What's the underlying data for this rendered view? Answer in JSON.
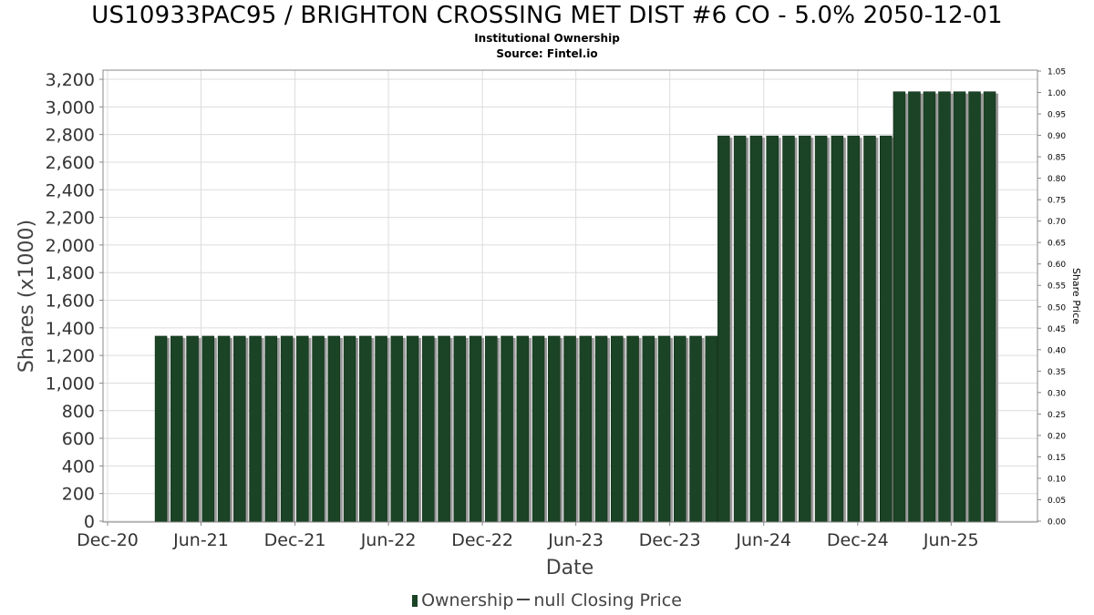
{
  "chart_data": {
    "type": "bar",
    "title": "US10933PAC95 / BRIGHTON CROSSING MET DIST #6 CO - 5.0% 2050-12-01",
    "subtitle": [
      "Institutional Ownership",
      "Source: Fintel.io"
    ],
    "xlabel": "Date",
    "ylabel": "Shares (x1000)",
    "y2label": "Share Price",
    "ylim": [
      0,
      3300
    ],
    "y2lim": [
      0,
      1.05
    ],
    "xlim": [
      "2020-12-01",
      "2025-10-01"
    ],
    "y_ticks": [
      "0",
      "200",
      "400",
      "600",
      "800",
      "1,000",
      "1,200",
      "1,400",
      "1,600",
      "1,800",
      "2,000",
      "2,200",
      "2,400",
      "2,600",
      "2,800",
      "3,000",
      "3,200"
    ],
    "y2_ticks": [
      "0.00",
      "0.05",
      "0.10",
      "0.15",
      "0.20",
      "0.25",
      "0.30",
      "0.35",
      "0.40",
      "0.45",
      "0.50",
      "0.55",
      "0.60",
      "0.65",
      "0.70",
      "0.75",
      "0.80",
      "0.85",
      "0.90",
      "0.95",
      "1.00",
      "1.05"
    ],
    "x_ticks": [
      {
        "date": "2020-12-01",
        "label": "Dec-20"
      },
      {
        "date": "2021-06-01",
        "label": "Jun-21"
      },
      {
        "date": "2021-12-01",
        "label": "Dec-21"
      },
      {
        "date": "2022-06-01",
        "label": "Jun-22"
      },
      {
        "date": "2022-12-01",
        "label": "Dec-22"
      },
      {
        "date": "2023-06-01",
        "label": "Jun-23"
      },
      {
        "date": "2023-12-01",
        "label": "Dec-23"
      },
      {
        "date": "2024-06-01",
        "label": "Jun-24"
      },
      {
        "date": "2024-12-01",
        "label": "Dec-24"
      },
      {
        "date": "2025-06-01",
        "label": "Jun-25"
      }
    ],
    "grid": true,
    "legend_placement": "bottom",
    "series": [
      {
        "name": "Ownership",
        "color": "#1b4325",
        "segments": [
          {
            "start": "2021-03-15",
            "end": "2024-02-20",
            "value": 1340
          },
          {
            "start": "2024-03-15",
            "end": "2025-01-25",
            "value": 2790
          },
          {
            "start": "2025-02-20",
            "end": "2025-08-15",
            "value": 3110
          }
        ]
      }
    ],
    "legend": [
      {
        "label": "Ownership",
        "symbol": "bar"
      },
      {
        "label": "null Closing Price",
        "symbol": "line"
      }
    ]
  }
}
